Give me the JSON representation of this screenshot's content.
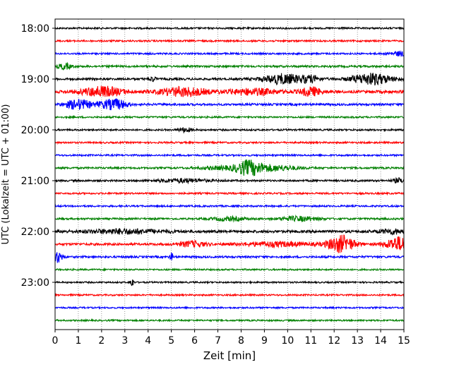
{
  "chart_data": {
    "type": "line",
    "title": "",
    "xlabel": "Zeit  [min]",
    "ylabel": "UTC (Lokalzeit = UTC + 01:00)",
    "xlim": [
      0,
      15
    ],
    "x_ticks": [
      0,
      1,
      2,
      3,
      4,
      5,
      6,
      7,
      8,
      9,
      10,
      11,
      12,
      13,
      14,
      15
    ],
    "x_tick_labels": [
      "0",
      "1",
      "2",
      "3",
      "4",
      "5",
      "6",
      "7",
      "8",
      "9",
      "10",
      "11",
      "12",
      "13",
      "14",
      "15"
    ],
    "y_ticks": [
      "18:00",
      "19:00",
      "20:00",
      "21:00",
      "22:00",
      "23:00"
    ],
    "vertical_grid": "dotted",
    "line_colors": [
      "#000000",
      "#ff0000",
      "#0000ff",
      "#008000"
    ],
    "traces": [
      {
        "start": "18:00",
        "color": "#000000",
        "amp": 1.2,
        "events": []
      },
      {
        "start": "18:15",
        "color": "#ff0000",
        "amp": 1.2,
        "events": []
      },
      {
        "start": "18:30",
        "color": "#0000ff",
        "amp": 1.2,
        "events": [
          {
            "t": 14.8,
            "a": 3,
            "w": 0.3
          }
        ]
      },
      {
        "start": "18:45",
        "color": "#008000",
        "amp": 1.4,
        "events": [
          {
            "t": 0.4,
            "a": 4,
            "w": 0.2
          }
        ]
      },
      {
        "start": "19:00",
        "color": "#000000",
        "amp": 1.5,
        "events": [
          {
            "t": 4.2,
            "a": 3,
            "w": 0.1
          },
          {
            "t": 9.8,
            "a": 7,
            "w": 0.6
          },
          {
            "t": 11.0,
            "a": 4,
            "w": 0.3
          },
          {
            "t": 13.6,
            "a": 8,
            "w": 0.6
          }
        ]
      },
      {
        "start": "19:15",
        "color": "#ff0000",
        "amp": 2.0,
        "events": [
          {
            "t": 2.0,
            "a": 7,
            "w": 0.6
          },
          {
            "t": 5.5,
            "a": 6,
            "w": 0.7
          },
          {
            "t": 8.5,
            "a": 4,
            "w": 0.8
          },
          {
            "t": 11.0,
            "a": 6,
            "w": 0.3
          }
        ]
      },
      {
        "start": "19:30",
        "color": "#0000ff",
        "amp": 1.5,
        "events": [
          {
            "t": 1.0,
            "a": 7,
            "w": 0.4
          },
          {
            "t": 2.2,
            "a": 4,
            "w": 0.3
          },
          {
            "t": 2.7,
            "a": 6,
            "w": 0.3
          }
        ]
      },
      {
        "start": "19:45",
        "color": "#008000",
        "amp": 1.2,
        "events": []
      },
      {
        "start": "20:00",
        "color": "#000000",
        "amp": 1.2,
        "events": [
          {
            "t": 5.6,
            "a": 3,
            "w": 0.2
          }
        ]
      },
      {
        "start": "20:15",
        "color": "#ff0000",
        "amp": 1.2,
        "events": []
      },
      {
        "start": "20:30",
        "color": "#0000ff",
        "amp": 1.2,
        "events": []
      },
      {
        "start": "20:45",
        "color": "#008000",
        "amp": 1.3,
        "events": [
          {
            "t": 8.3,
            "a": 9,
            "w": 0.4
          },
          {
            "t": 9.3,
            "a": 4,
            "w": 0.8
          },
          {
            "t": 7.0,
            "a": 2,
            "w": 0.6
          }
        ]
      },
      {
        "start": "21:00",
        "color": "#000000",
        "amp": 1.3,
        "events": [
          {
            "t": 5.5,
            "a": 2.5,
            "w": 0.8
          },
          {
            "t": 14.8,
            "a": 3,
            "w": 0.2
          }
        ]
      },
      {
        "start": "21:15",
        "color": "#ff0000",
        "amp": 1.2,
        "events": []
      },
      {
        "start": "21:30",
        "color": "#0000ff",
        "amp": 1.2,
        "events": []
      },
      {
        "start": "21:45",
        "color": "#008000",
        "amp": 1.3,
        "events": [
          {
            "t": 7.5,
            "a": 2.5,
            "w": 0.5
          },
          {
            "t": 10.5,
            "a": 3,
            "w": 0.6
          }
        ]
      },
      {
        "start": "22:00",
        "color": "#000000",
        "amp": 1.8,
        "events": [
          {
            "t": 3.0,
            "a": 3,
            "w": 1.2
          },
          {
            "t": 14.5,
            "a": 3,
            "w": 0.4
          }
        ]
      },
      {
        "start": "22:15",
        "color": "#ff0000",
        "amp": 1.6,
        "events": [
          {
            "t": 5.9,
            "a": 4,
            "w": 0.4
          },
          {
            "t": 9.5,
            "a": 3,
            "w": 1.0
          },
          {
            "t": 12.3,
            "a": 12,
            "w": 0.4
          },
          {
            "t": 14.8,
            "a": 10,
            "w": 0.4
          }
        ]
      },
      {
        "start": "22:30",
        "color": "#0000ff",
        "amp": 1.4,
        "events": [
          {
            "t": 0.1,
            "a": 8,
            "w": 0.15
          },
          {
            "t": 5.0,
            "a": 6,
            "w": 0.05
          }
        ]
      },
      {
        "start": "22:45",
        "color": "#008000",
        "amp": 1.1,
        "events": []
      },
      {
        "start": "23:00",
        "color": "#000000",
        "amp": 1.1,
        "events": [
          {
            "t": 3.3,
            "a": 7,
            "w": 0.05
          }
        ]
      },
      {
        "start": "23:15",
        "color": "#ff0000",
        "amp": 1.1,
        "events": []
      },
      {
        "start": "23:30",
        "color": "#0000ff",
        "amp": 1.1,
        "events": []
      },
      {
        "start": "23:45",
        "color": "#008000",
        "amp": 1.1,
        "events": []
      }
    ]
  }
}
